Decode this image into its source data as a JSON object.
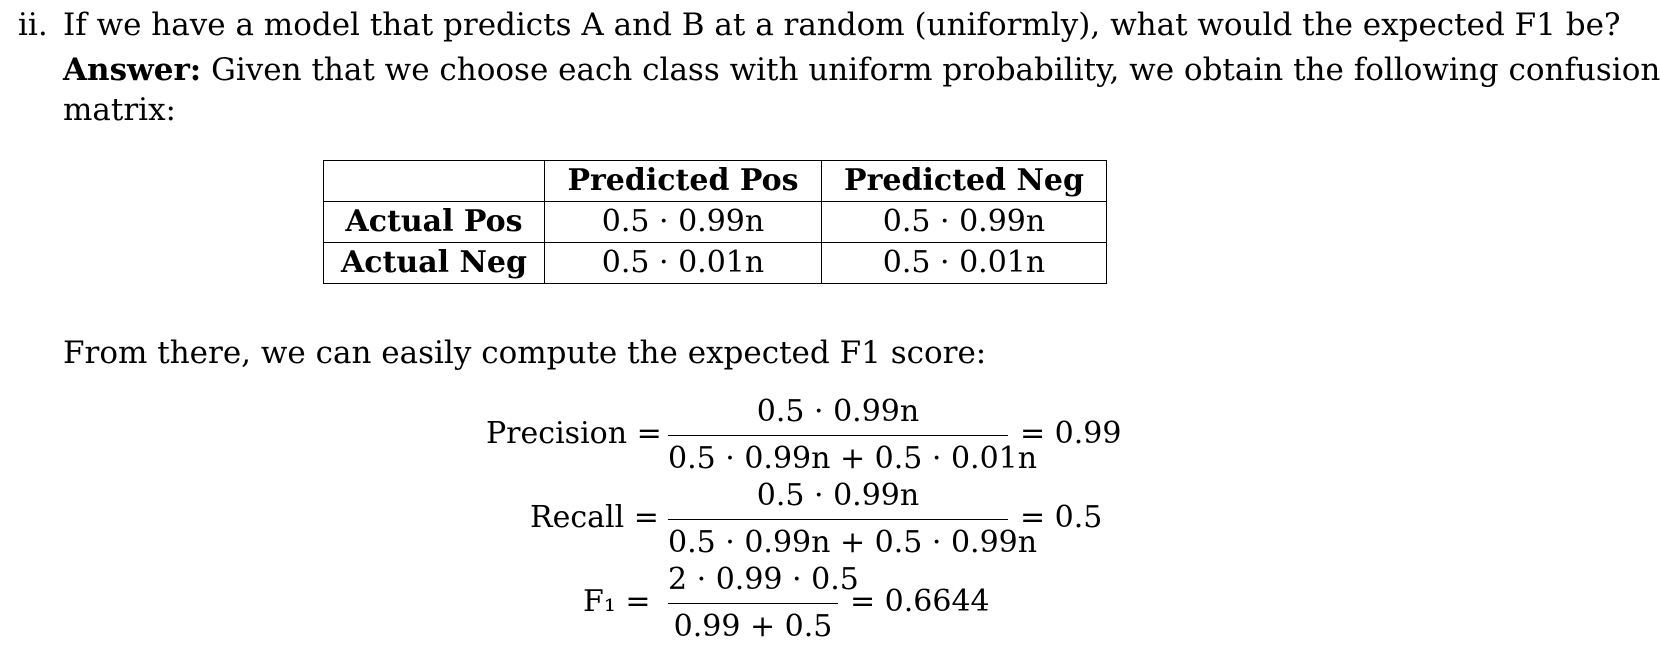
{
  "question": {
    "number": "ii.",
    "text": "If we have a model that predicts A and B at a random (uniformly), what would the expected F1 be?"
  },
  "answer": {
    "label": "Answer:",
    "text_line1": "Given that we choose each class with uniform probability, we obtain the following confusion",
    "text_line2": "matrix:"
  },
  "confusion_matrix": {
    "corner": "",
    "col_headers": [
      "Predicted Pos",
      "Predicted Neg"
    ],
    "rows": [
      {
        "label": "Actual Pos",
        "cells": [
          "0.5 · 0.99n",
          "0.5 · 0.99n"
        ]
      },
      {
        "label": "Actual Neg",
        "cells": [
          "0.5 · 0.01n",
          "0.5 · 0.01n"
        ]
      }
    ]
  },
  "followup": "From there, we can easily compute the expected F1 score:",
  "equations": [
    {
      "lhs": "Precision =",
      "numerator": "0.5 · 0.99n",
      "denominator": "0.5 · 0.99n + 0.5 · 0.01n",
      "result": "= 0.99"
    },
    {
      "lhs": "Recall =",
      "numerator": "0.5 · 0.99n",
      "denominator": "0.5 · 0.99n + 0.5 · 0.99n",
      "result": "= 0.5"
    },
    {
      "lhs": "F₁ =",
      "numerator": "2 · 0.99 · 0.5",
      "denominator": "0.99 + 0.5",
      "result": "= 0.6644"
    }
  ]
}
